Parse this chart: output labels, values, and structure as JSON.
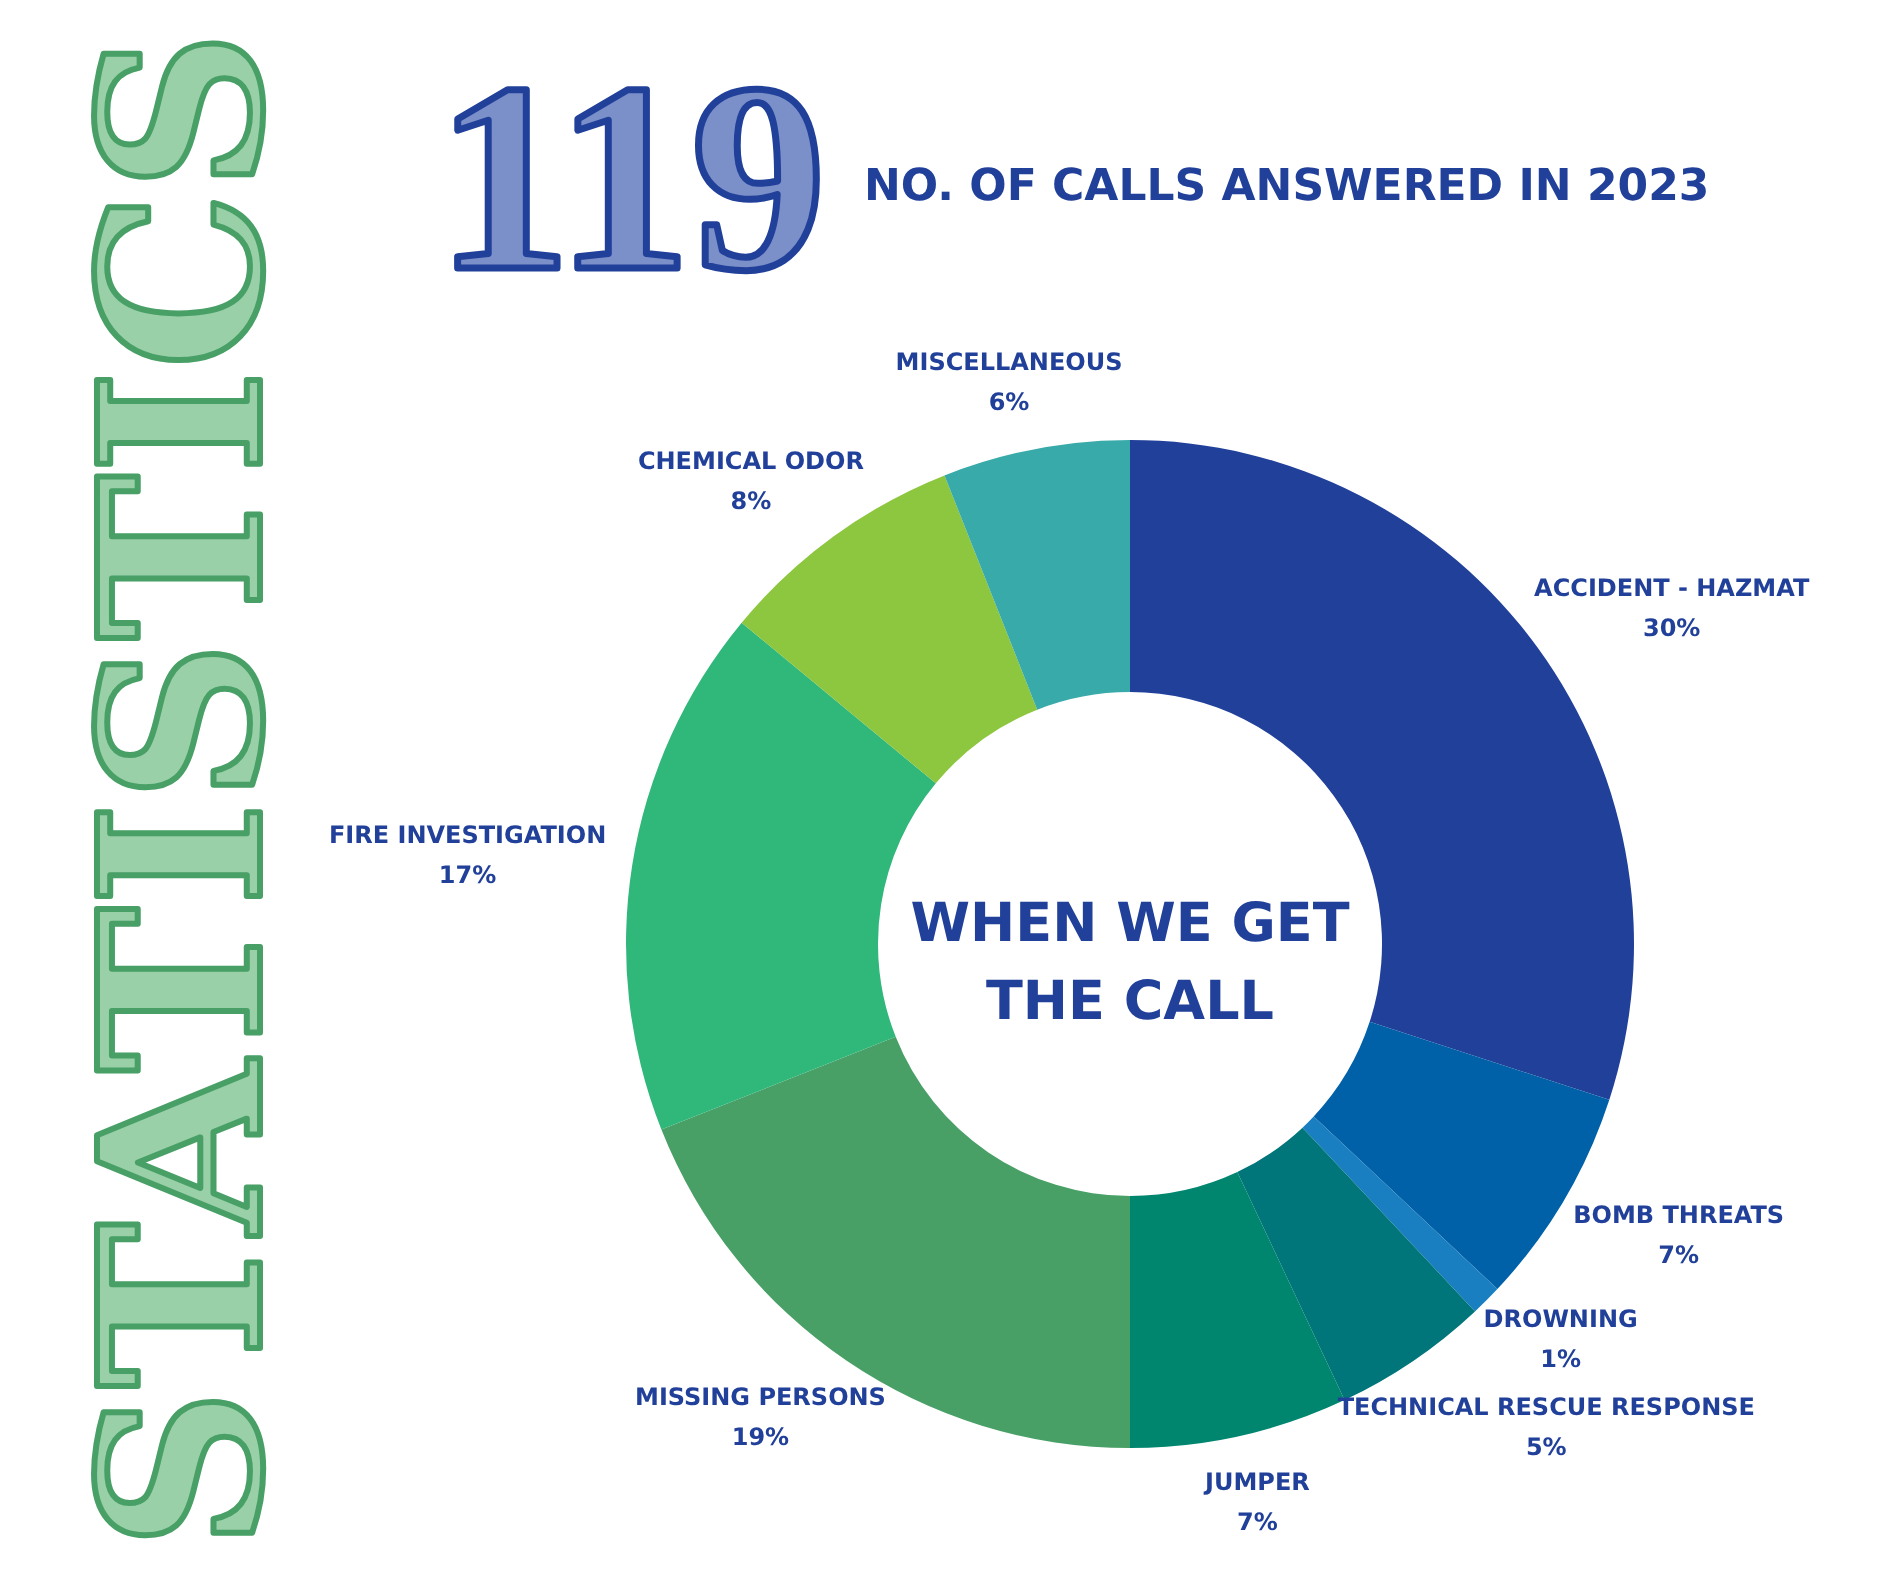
{
  "chart_data": {
    "type": "donut",
    "title": "WHEN WE GET THE CALL",
    "categories": [
      "ACCIDENT - HAZMAT",
      "BOMB THREATS",
      "DROWNING",
      "TECHNICAL RESCUE RESPONSE",
      "JUMPER",
      "MISSING PERSONS",
      "FIRE INVESTIGATION",
      "CHEMICAL ODOR",
      "MISCELLANEOUS"
    ],
    "values": [
      30,
      7,
      1,
      5,
      7,
      19,
      17,
      8,
      6
    ],
    "value_labels": [
      "30%",
      "7%",
      "1%",
      "5%",
      "7%",
      "19%",
      "17%",
      "8%",
      "6%"
    ],
    "colors": [
      "#21409a",
      "#0061a8",
      "#1a7fc0",
      "#00757a",
      "#00866f",
      "#48a067",
      "#30b77a",
      "#8dc63f",
      "#38aaa9"
    ],
    "annotations": [
      "STATISTICS",
      "119",
      "NO. OF CALLS ANSWERED IN 2023"
    ]
  }
}
